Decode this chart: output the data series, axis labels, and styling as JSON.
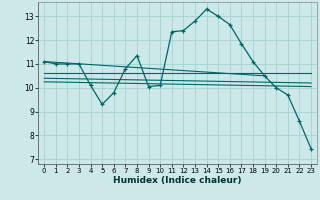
{
  "title": "",
  "xlabel": "Humidex (Indice chaleur)",
  "x_ticks": [
    0,
    1,
    2,
    3,
    4,
    5,
    6,
    7,
    8,
    9,
    10,
    11,
    12,
    13,
    14,
    15,
    16,
    17,
    18,
    19,
    20,
    21,
    22,
    23
  ],
  "xlim": [
    -0.5,
    23.5
  ],
  "ylim": [
    6.8,
    13.6
  ],
  "y_ticks": [
    7,
    8,
    9,
    10,
    11,
    12,
    13
  ],
  "bg_color": "#cce8e8",
  "grid_color": "#aad4d4",
  "line_color": "#006666",
  "main_series": {
    "x": [
      0,
      1,
      2,
      3,
      4,
      5,
      6,
      7,
      8,
      9,
      10,
      11,
      12,
      13,
      14,
      15,
      16,
      17,
      18,
      19,
      20,
      21,
      22,
      23
    ],
    "y": [
      11.1,
      11.0,
      11.0,
      11.0,
      10.1,
      9.3,
      9.8,
      10.8,
      11.35,
      10.05,
      10.1,
      12.35,
      12.4,
      12.8,
      13.3,
      13.0,
      12.65,
      11.85,
      11.1,
      10.5,
      10.0,
      9.7,
      8.6,
      7.45
    ]
  },
  "flat_lines": [
    {
      "x": [
        0,
        19
      ],
      "y": [
        11.1,
        10.5
      ]
    },
    {
      "x": [
        0,
        23
      ],
      "y": [
        10.6,
        10.6
      ]
    },
    {
      "x": [
        0,
        23
      ],
      "y": [
        10.4,
        10.2
      ]
    },
    {
      "x": [
        0,
        23
      ],
      "y": [
        10.25,
        10.05
      ]
    }
  ]
}
